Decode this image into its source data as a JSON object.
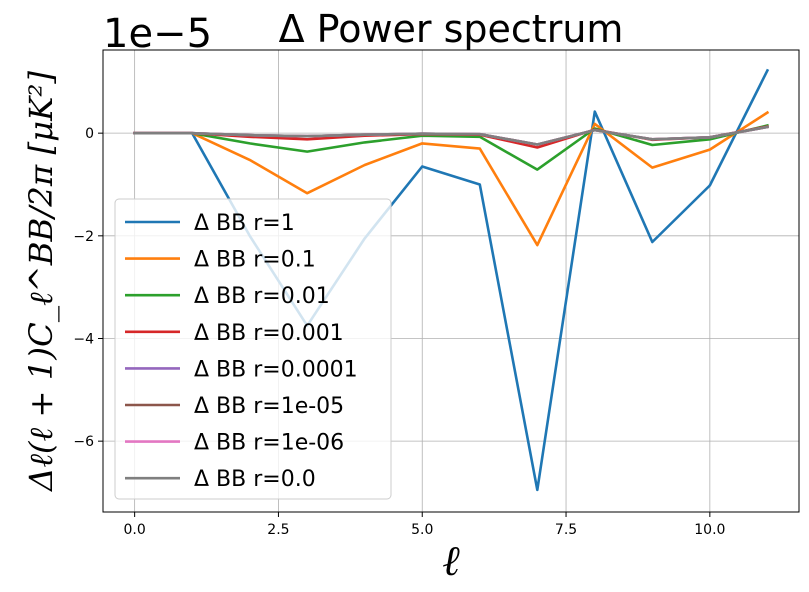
{
  "chart_data": {
    "type": "line",
    "title": "Δ Power spectrum",
    "scale_text": "1e−5",
    "xlabel": "ℓ",
    "ylabel": "Δℓ(ℓ + 1)C_ℓ^BB/2π [μK²]",
    "x": [
      0,
      1,
      2,
      3,
      4,
      5,
      6,
      7,
      8,
      9,
      10,
      11
    ],
    "xlim": [
      -0.55,
      11.55
    ],
    "ylim": [
      -7.38,
      1.62
    ],
    "xticks": [
      0.0,
      2.5,
      5.0,
      7.5,
      10.0
    ],
    "xtick_labels": [
      "0.0",
      "2.5",
      "5.0",
      "7.5",
      "10.0"
    ],
    "yticks": [
      -6,
      -4,
      -2,
      0
    ],
    "ytick_labels": [
      "−6",
      "−4",
      "−2",
      "0"
    ],
    "grid": true,
    "legend_position": "lower-left",
    "series": [
      {
        "name": "Δ BB r=1",
        "color": "#1f77b4",
        "values": [
          0,
          0,
          -2.0,
          -3.75,
          -2.05,
          -0.65,
          -1.0,
          -6.95,
          0.42,
          -2.12,
          -1.02,
          1.22
        ]
      },
      {
        "name": "Δ BB r=0.1",
        "color": "#ff7f0e",
        "values": [
          0,
          0,
          -0.52,
          -1.17,
          -0.62,
          -0.2,
          -0.3,
          -2.18,
          0.18,
          -0.67,
          -0.32,
          0.4
        ]
      },
      {
        "name": "Δ BB r=0.01",
        "color": "#2ca02c",
        "values": [
          0,
          0,
          -0.2,
          -0.36,
          -0.18,
          -0.05,
          -0.07,
          -0.71,
          0.09,
          -0.23,
          -0.12,
          0.15
        ]
      },
      {
        "name": "Δ BB r=0.001",
        "color": "#d62728",
        "values": [
          0,
          0,
          -0.07,
          -0.12,
          -0.05,
          -0.02,
          -0.03,
          -0.28,
          0.07,
          -0.13,
          -0.08,
          0.13
        ]
      },
      {
        "name": "Δ BB r=0.0001",
        "color": "#9467bd",
        "values": [
          0,
          0,
          -0.04,
          -0.06,
          -0.03,
          -0.01,
          -0.02,
          -0.22,
          0.06,
          -0.12,
          -0.08,
          0.12
        ]
      },
      {
        "name": "Δ BB r=1e-05",
        "color": "#8c564b",
        "values": [
          0,
          0,
          -0.04,
          -0.06,
          -0.03,
          -0.01,
          -0.02,
          -0.22,
          0.06,
          -0.12,
          -0.08,
          0.12
        ]
      },
      {
        "name": "Δ BB r=1e-06",
        "color": "#e377c2",
        "values": [
          0,
          0,
          -0.04,
          -0.06,
          -0.03,
          -0.01,
          -0.02,
          -0.22,
          0.06,
          -0.12,
          -0.08,
          0.12
        ]
      },
      {
        "name": "Δ BB r=0.0",
        "color": "#7f7f7f",
        "values": [
          0,
          0,
          -0.04,
          -0.06,
          -0.03,
          -0.01,
          -0.02,
          -0.22,
          0.06,
          -0.12,
          -0.08,
          0.12
        ]
      }
    ]
  }
}
